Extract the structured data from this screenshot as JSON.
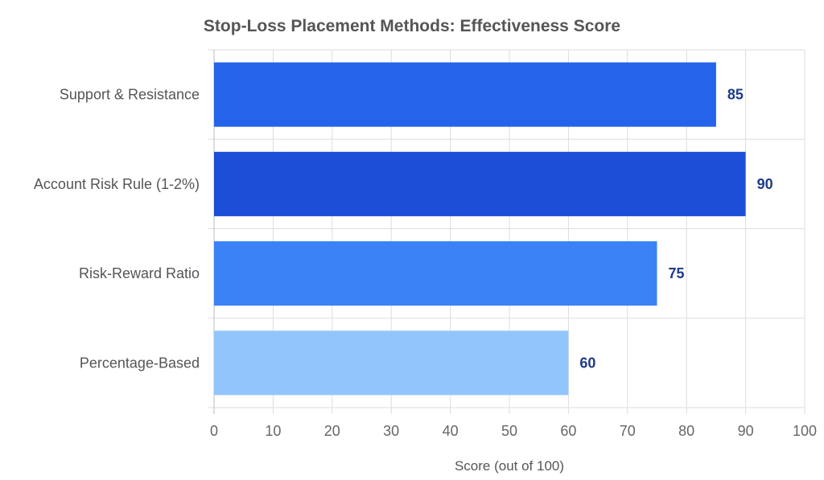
{
  "chart_data": {
    "type": "bar",
    "orientation": "horizontal",
    "title": "Stop-Loss Placement Methods: Effectiveness Score",
    "xlabel": "Score (out of 100)",
    "ylabel": "",
    "categories": [
      "Support & Resistance",
      "Account Risk Rule (1-2%)",
      "Risk-Reward Ratio",
      "Percentage-Based"
    ],
    "values": [
      85,
      90,
      75,
      60
    ],
    "colors": [
      "#2563eb",
      "#1d4ed8",
      "#3b82f6",
      "#93c5fd"
    ],
    "value_label_color": "#1e3a8a",
    "xlim": [
      0,
      100
    ],
    "xticks": [
      0,
      10,
      20,
      30,
      40,
      50,
      60,
      70,
      80,
      90,
      100
    ],
    "grid": true,
    "data_labels": [
      "85",
      "90",
      "75",
      "60"
    ]
  }
}
